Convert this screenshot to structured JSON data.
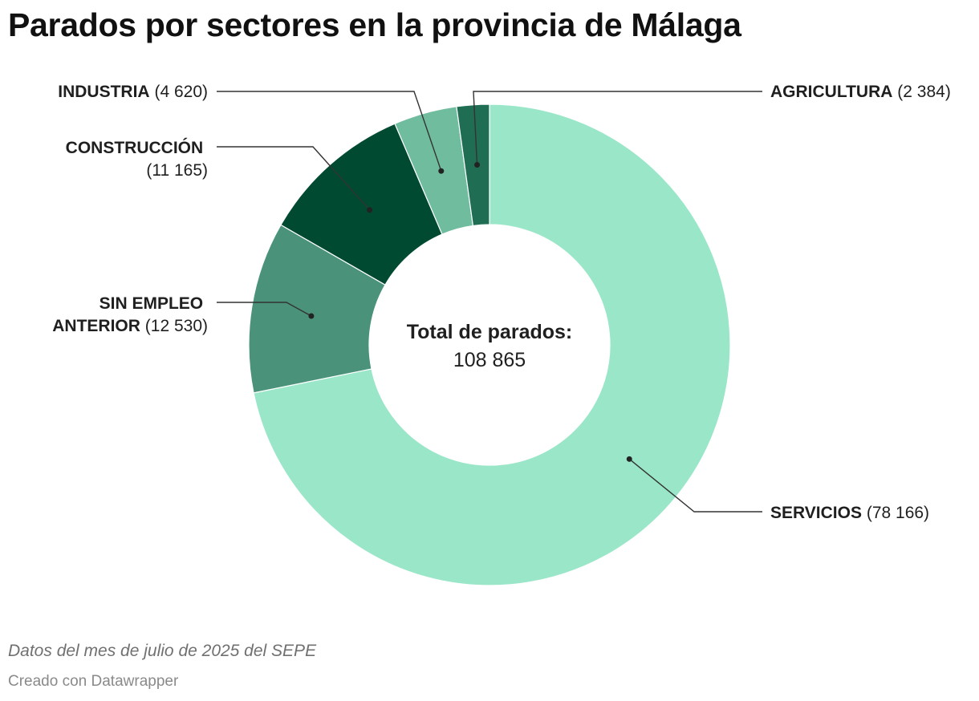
{
  "title": "Parados por sectores en la provincia de Málaga",
  "notes": "Datos del mes de julio de 2025 del SEPE",
  "credit": "Creado con Datawrapper",
  "chart_data": {
    "type": "pie",
    "donut": true,
    "title": "Parados por sectores en la provincia de Málaga",
    "center_label": "Total de parados:",
    "center_value": "108 865",
    "categories": [
      "SERVICIOS",
      "SIN EMPLEO ANTERIOR",
      "CONSTRUCCIÓN",
      "INDUSTRIA",
      "AGRICULTURA"
    ],
    "values": [
      78166,
      12530,
      11165,
      4620,
      2384
    ],
    "value_labels": [
      "(78 166)",
      "(12 530)",
      "(11 165)",
      "(4 620)",
      "(2 384)"
    ],
    "colors": [
      "#9ae6c8",
      "#4a937a",
      "#014a32",
      "#70bc9f",
      "#1f6e54"
    ]
  }
}
